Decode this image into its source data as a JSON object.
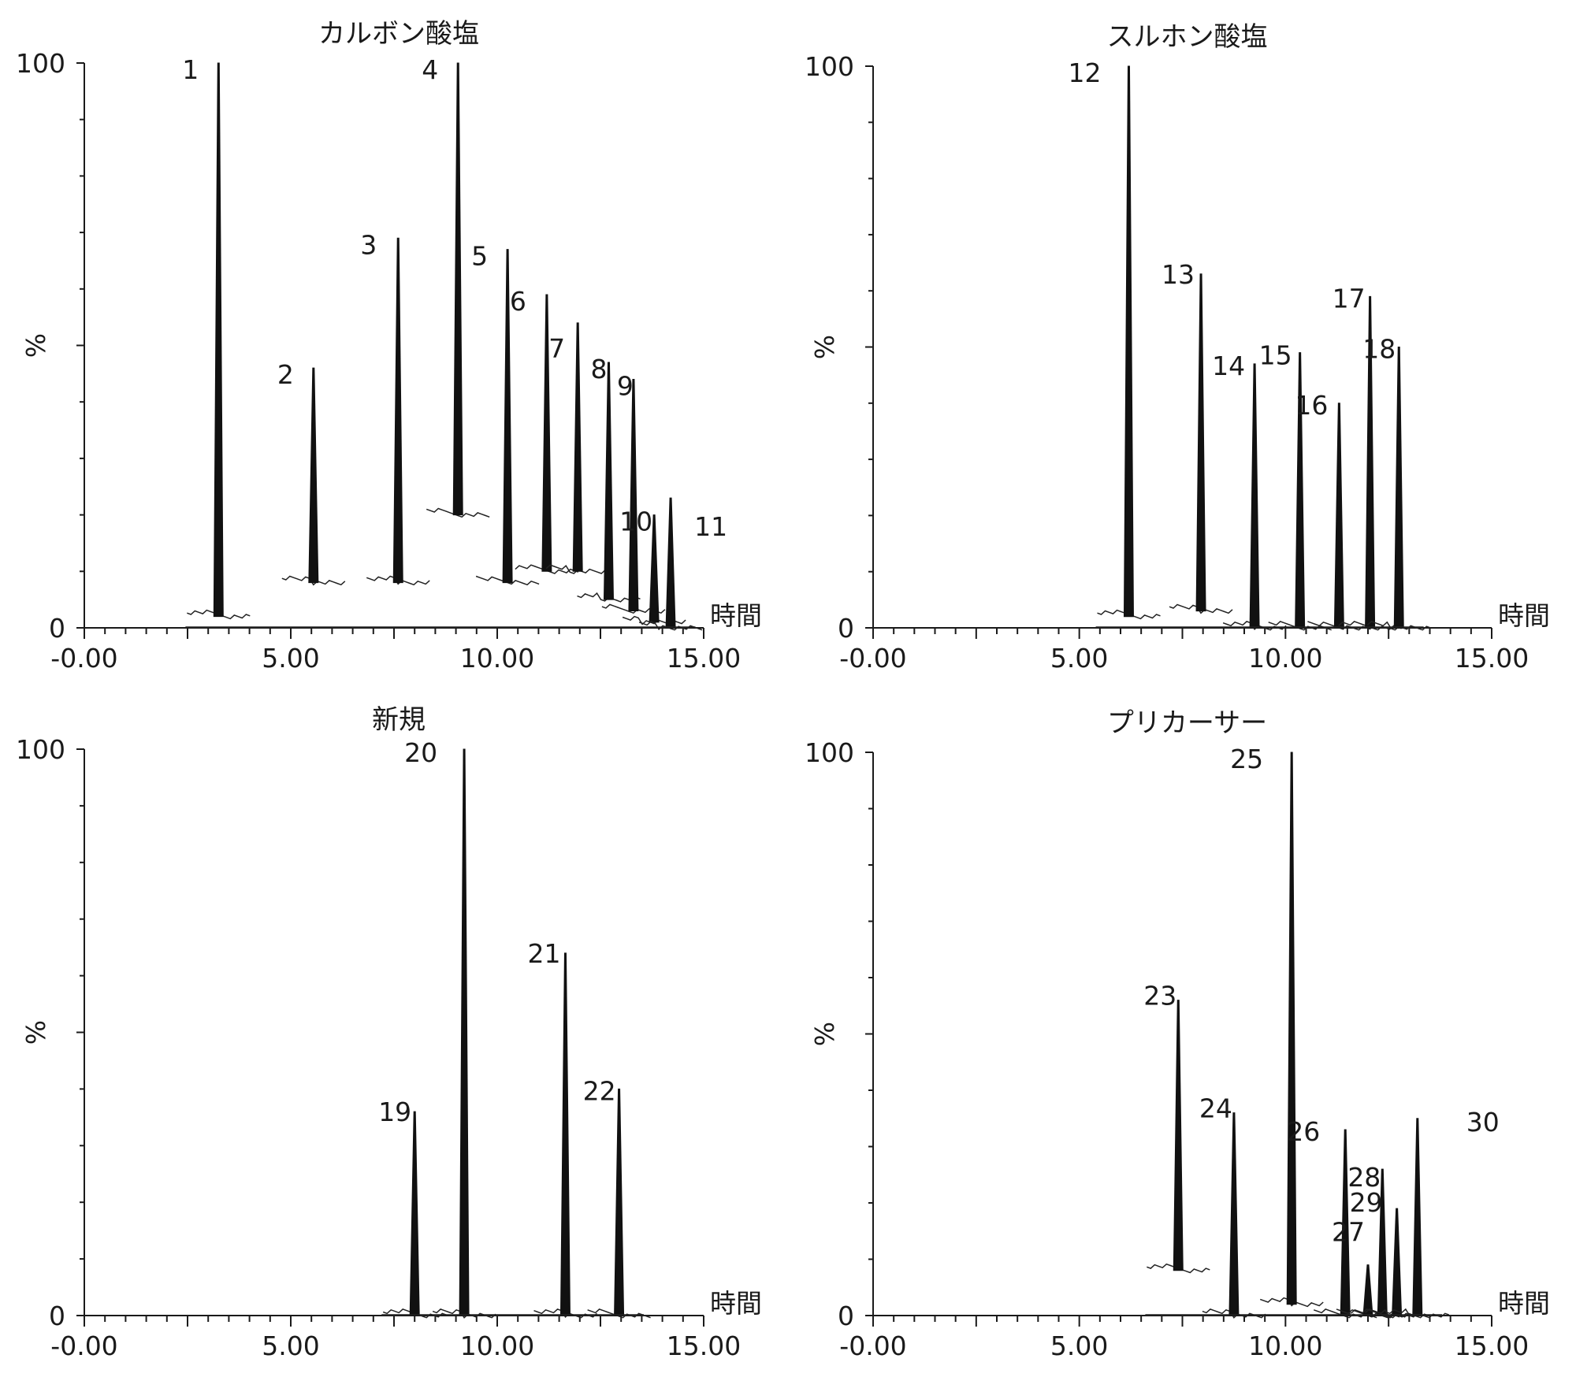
{
  "chart_data": [
    {
      "type": "line",
      "title": "カルボン酸塩",
      "xlabel": "時間",
      "ylabel": "%",
      "xlim": [
        0,
        15
      ],
      "ylim": [
        0,
        100
      ],
      "x_ticks": [
        "-0.00",
        "5.00",
        "10.00",
        "15.00"
      ],
      "x_tick_values": [
        0,
        5,
        10,
        15
      ],
      "y_ticks": [
        "0",
        "100"
      ],
      "y_tick_values": [
        0,
        100
      ],
      "peaks": [
        {
          "label": "1",
          "rt": 3.25,
          "height": 100,
          "base": 2
        },
        {
          "label": "2",
          "rt": 5.55,
          "height": 46,
          "base": 8
        },
        {
          "label": "3",
          "rt": 7.6,
          "height": 69,
          "base": 8
        },
        {
          "label": "4",
          "rt": 9.05,
          "height": 100,
          "base": 20
        },
        {
          "label": "5",
          "rt": 10.25,
          "height": 67,
          "base": 8
        },
        {
          "label": "6",
          "rt": 11.2,
          "height": 59,
          "base": 10
        },
        {
          "label": "7",
          "rt": 11.95,
          "height": 54,
          "base": 10
        },
        {
          "label": "8",
          "rt": 12.7,
          "height": 47,
          "base": 5
        },
        {
          "label": "9",
          "rt": 13.3,
          "height": 44,
          "base": 3
        },
        {
          "label": "10",
          "rt": 13.8,
          "height": 20,
          "base": 1
        },
        {
          "label": "11",
          "rt": 14.2,
          "height": 23,
          "base": 0
        }
      ]
    },
    {
      "type": "line",
      "title": "スルホン酸塩",
      "xlabel": "時間",
      "ylabel": "%",
      "xlim": [
        0,
        15
      ],
      "ylim": [
        0,
        100
      ],
      "x_ticks": [
        "-0.00",
        "5.00",
        "10.00",
        "15.00"
      ],
      "x_tick_values": [
        0,
        5,
        10,
        15
      ],
      "y_ticks": [
        "0",
        "100"
      ],
      "y_tick_values": [
        0,
        100
      ],
      "peaks": [
        {
          "label": "12",
          "rt": 6.2,
          "height": 100,
          "base": 2
        },
        {
          "label": "13",
          "rt": 7.95,
          "height": 63,
          "base": 3
        },
        {
          "label": "14",
          "rt": 9.25,
          "height": 47,
          "base": 0
        },
        {
          "label": "15",
          "rt": 10.35,
          "height": 49,
          "base": 0
        },
        {
          "label": "16",
          "rt": 11.3,
          "height": 40,
          "base": 0
        },
        {
          "label": "17",
          "rt": 12.05,
          "height": 59,
          "base": 0
        },
        {
          "label": "18",
          "rt": 12.75,
          "height": 50,
          "base": 0
        }
      ]
    },
    {
      "type": "line",
      "title": "新規",
      "xlabel": "時間",
      "ylabel": "%",
      "xlim": [
        0,
        15
      ],
      "ylim": [
        0,
        100
      ],
      "x_ticks": [
        "-0.00",
        "5.00",
        "10.00",
        "15.00"
      ],
      "x_tick_values": [
        0,
        5,
        10,
        15
      ],
      "y_ticks": [
        "0",
        "100"
      ],
      "y_tick_values": [
        0,
        100
      ],
      "peaks": [
        {
          "label": "19",
          "rt": 8.0,
          "height": 36,
          "base": 0
        },
        {
          "label": "20",
          "rt": 9.2,
          "height": 100,
          "base": 0
        },
        {
          "label": "21",
          "rt": 11.65,
          "height": 64,
          "base": 0
        },
        {
          "label": "22",
          "rt": 12.95,
          "height": 40,
          "base": 0
        }
      ]
    },
    {
      "type": "line",
      "title": "プリカーサー",
      "xlabel": "時間",
      "ylabel": "%",
      "xlim": [
        0,
        15
      ],
      "ylim": [
        0,
        100
      ],
      "x_ticks": [
        "-0.00",
        "5.00",
        "10.00",
        "15.00"
      ],
      "x_tick_values": [
        0,
        5,
        10,
        15
      ],
      "y_ticks": [
        "0",
        "100"
      ],
      "y_tick_values": [
        0,
        100
      ],
      "peaks": [
        {
          "label": "23",
          "rt": 7.4,
          "height": 56,
          "base": 8
        },
        {
          "label": "24",
          "rt": 8.75,
          "height": 36,
          "base": 0
        },
        {
          "label": "25",
          "rt": 10.15,
          "height": 100,
          "base": 2
        },
        {
          "label": "26",
          "rt": 11.45,
          "height": 33,
          "base": 0
        },
        {
          "label": "27",
          "rt": 12.0,
          "height": 9,
          "base": 0
        },
        {
          "label": "28",
          "rt": 12.35,
          "height": 26,
          "base": 0
        },
        {
          "label": "29",
          "rt": 12.7,
          "height": 19,
          "base": 0
        },
        {
          "label": "30",
          "rt": 13.2,
          "height": 35,
          "base": 0
        }
      ]
    }
  ]
}
